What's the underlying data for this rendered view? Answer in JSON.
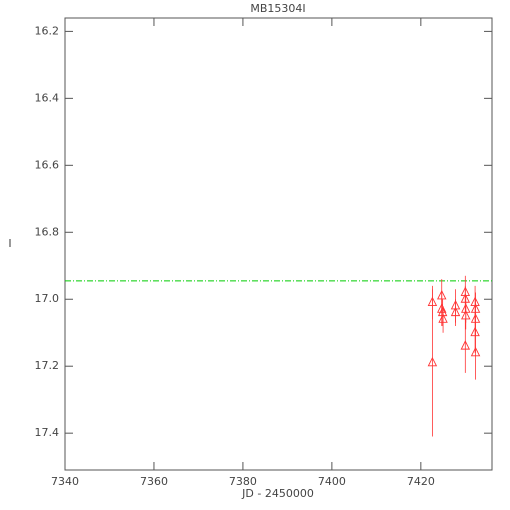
{
  "chart_data": {
    "type": "scatter",
    "title": "MB15304I",
    "x_label": "JD - 2450000",
    "y_label": "I",
    "xlim": [
      7340,
      7436
    ],
    "xticks": [
      7340,
      7360,
      7380,
      7400,
      7420
    ],
    "ylim": [
      17.51,
      16.16
    ],
    "yticks": [
      {
        "value": 16.2,
        "label": "16.2"
      },
      {
        "value": 16.4,
        "label": "16.4"
      },
      {
        "value": 16.6,
        "label": "16.6"
      },
      {
        "value": 16.8,
        "label": "16.8"
      },
      {
        "value": 17.0,
        "label": "17.0"
      },
      {
        "value": 17.2,
        "label": "17.2"
      },
      {
        "value": 17.4,
        "label": "17.4"
      }
    ],
    "reference_line": {
      "value": 16.945,
      "color": "#00cc00"
    },
    "series": [
      {
        "color": "#ff3333",
        "x": [
          7422.6,
          7422.6,
          7424.7,
          7424.7,
          7424.9,
          7425.0,
          7427.8,
          7427.8,
          7430.0,
          7430.0,
          7430.1,
          7430.1,
          7430.0,
          7432.2,
          7432.3,
          7432.3,
          7432.2,
          7432.3
        ],
        "values": [
          17.01,
          17.19,
          16.99,
          17.03,
          17.04,
          17.06,
          17.02,
          17.04,
          16.98,
          17.0,
          17.03,
          17.05,
          17.14,
          17.01,
          17.03,
          17.06,
          17.1,
          17.16
        ],
        "errors": [
          0.05,
          0.22,
          0.05,
          0.05,
          0.04,
          0.04,
          0.05,
          0.04,
          0.05,
          0.04,
          0.04,
          0.04,
          0.08,
          0.05,
          0.05,
          0.05,
          0.06,
          0.08
        ]
      }
    ]
  }
}
